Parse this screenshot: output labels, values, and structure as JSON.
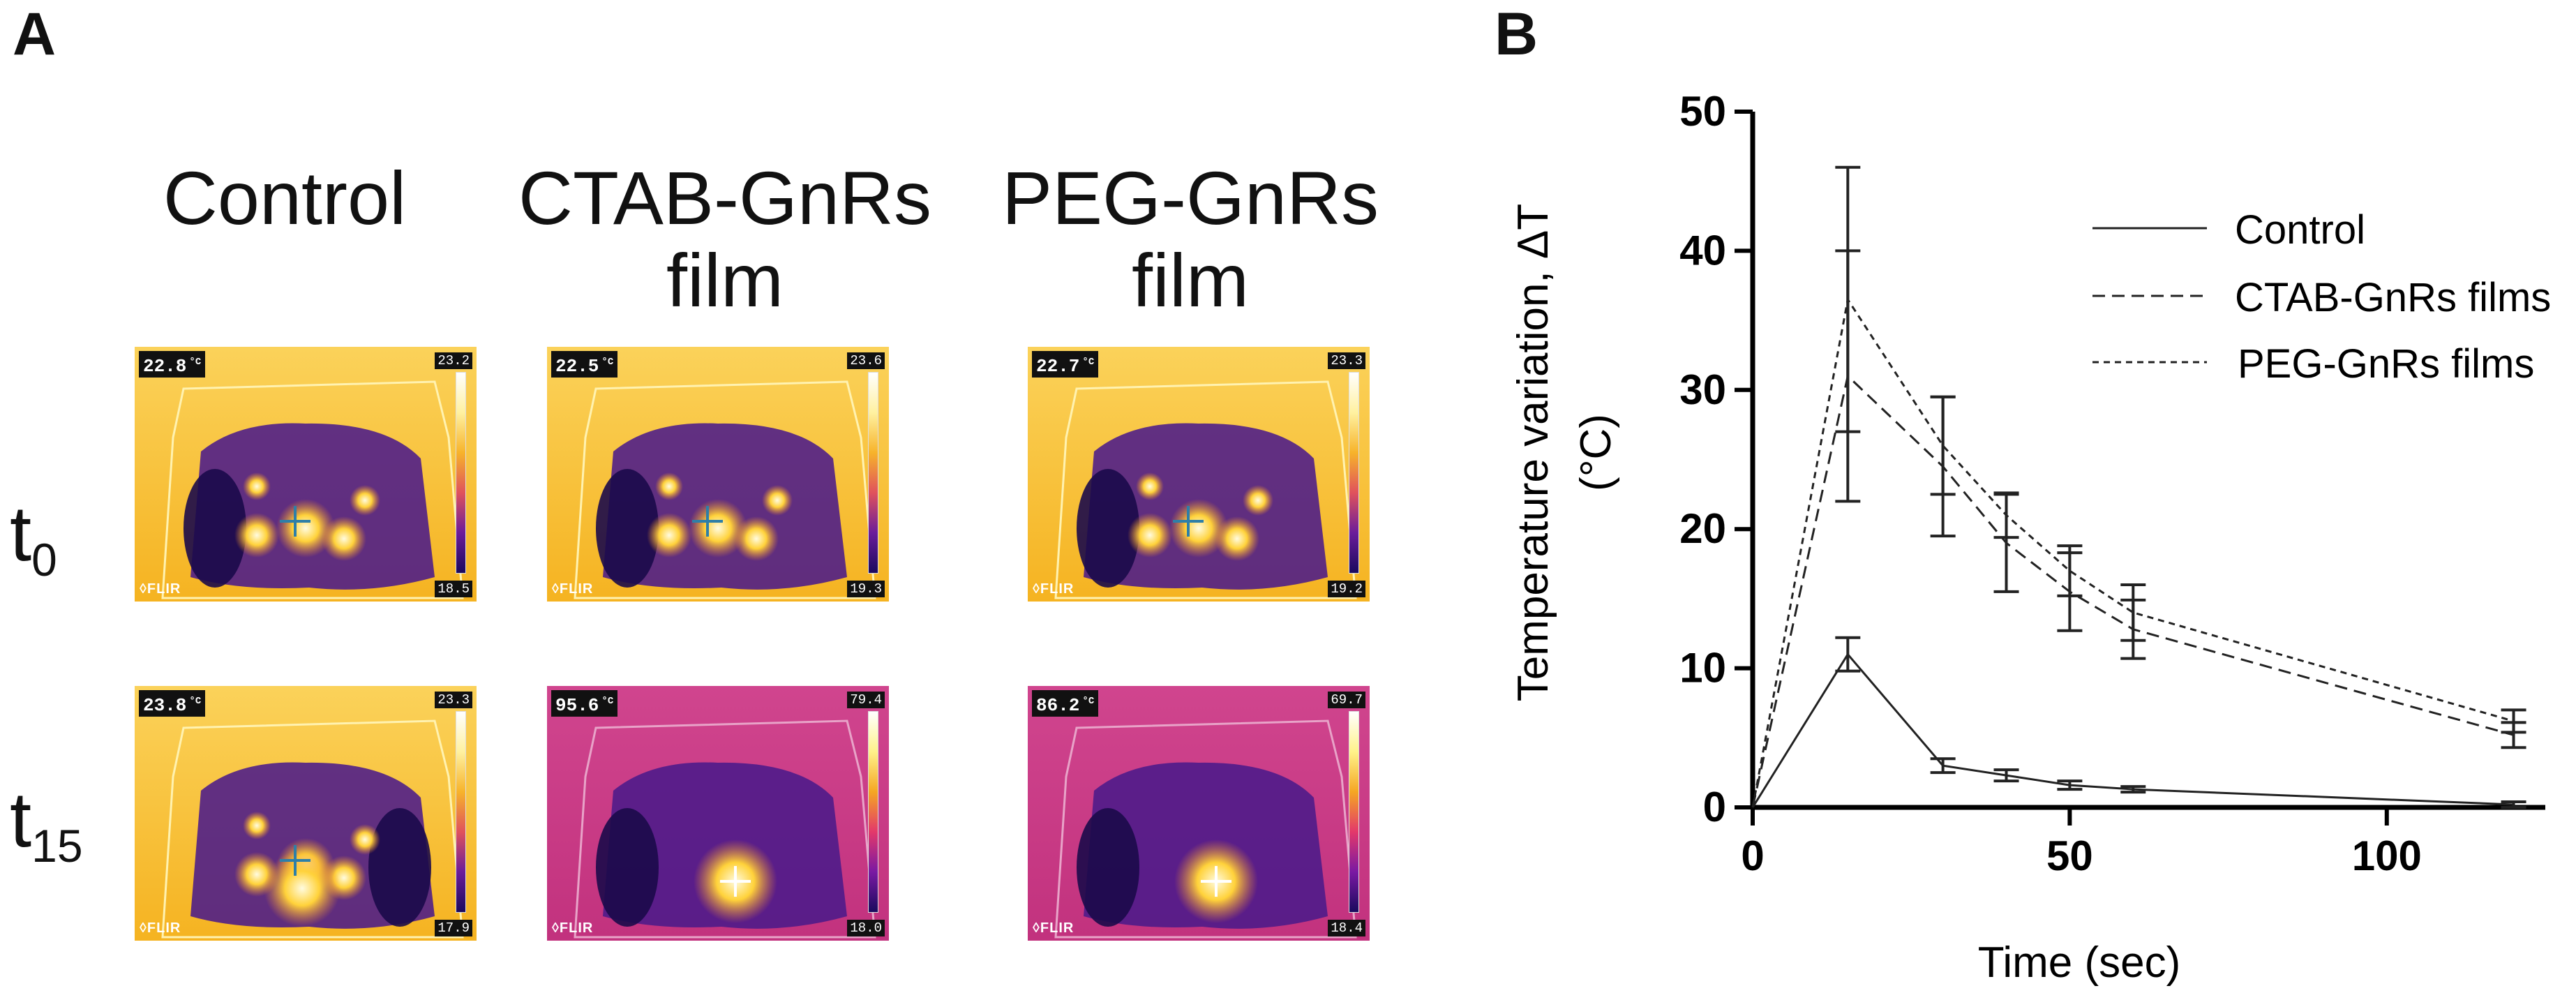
{
  "panel_a": {
    "letter": "A",
    "columns": [
      {
        "label": "Control"
      },
      {
        "label": "CTAB-GnRs film"
      },
      {
        "label": "PEG-GnRs film"
      }
    ],
    "rows": [
      {
        "label_main": "t",
        "label_sub": "0"
      },
      {
        "label_main": "t",
        "label_sub": "15"
      }
    ],
    "images": [
      {
        "temp": "22.8",
        "scale_max": "23.2",
        "scale_min": "18.5",
        "palette": "warm"
      },
      {
        "temp": "22.5",
        "scale_max": "23.6",
        "scale_min": "19.3",
        "palette": "warm"
      },
      {
        "temp": "22.7",
        "scale_max": "23.3",
        "scale_min": "19.2",
        "palette": "warm"
      },
      {
        "temp": "23.8",
        "scale_max": "23.3",
        "scale_min": "17.9",
        "palette": "warm"
      },
      {
        "temp": "95.6",
        "scale_max": "79.4",
        "scale_min": "18.0",
        "palette": "hot"
      },
      {
        "temp": "86.2",
        "scale_max": "69.7",
        "scale_min": "18.4",
        "palette": "hot"
      }
    ],
    "degree_unit": "°C",
    "brand": "◊FLIR",
    "colors": {
      "warm_bg": "#f5b321",
      "hot_bg": "#c2327e",
      "purple": "#4b1a8a",
      "dark": "#1b0a4a"
    }
  },
  "panel_b": {
    "letter": "B"
  },
  "chart_data": {
    "type": "line",
    "title": "",
    "xlabel": "Time (sec)",
    "ylabel": "Temperature variation, ΔT (°C)",
    "ylabel_line1": "Temperature variation, ΔT",
    "ylabel_line2": "(°C)",
    "xlim": [
      0,
      125
    ],
    "ylim": [
      0,
      50
    ],
    "xticks": [
      0,
      50,
      100
    ],
    "yticks": [
      0,
      10,
      20,
      30,
      40,
      50
    ],
    "grid": false,
    "legend_position": "top-right",
    "series": [
      {
        "name": "Control",
        "style": "solid",
        "x": [
          0,
          15,
          30,
          40,
          50,
          60,
          120
        ],
        "y": [
          0,
          11,
          3.0,
          2.3,
          1.6,
          1.3,
          0.2
        ],
        "err": [
          0,
          1.2,
          0.5,
          0.4,
          0.3,
          0.2,
          0.2
        ]
      },
      {
        "name": "CTAB-GnRs films",
        "style": "dashed",
        "x": [
          0,
          15,
          30,
          40,
          50,
          60,
          120
        ],
        "y": [
          0,
          31,
          24.5,
          19,
          15.5,
          12.8,
          5.2
        ],
        "err": [
          0,
          9,
          5,
          3.5,
          2.8,
          2.1,
          0.9
        ]
      },
      {
        "name": "PEG-GnRs films",
        "style": "dotted",
        "x": [
          0,
          15,
          30,
          40,
          50,
          60,
          120
        ],
        "y": [
          0,
          36.5,
          26,
          21,
          17,
          14,
          6.2
        ],
        "err": [
          0,
          9.5,
          3.5,
          1.6,
          1.8,
          2.0,
          0.8
        ]
      }
    ]
  }
}
